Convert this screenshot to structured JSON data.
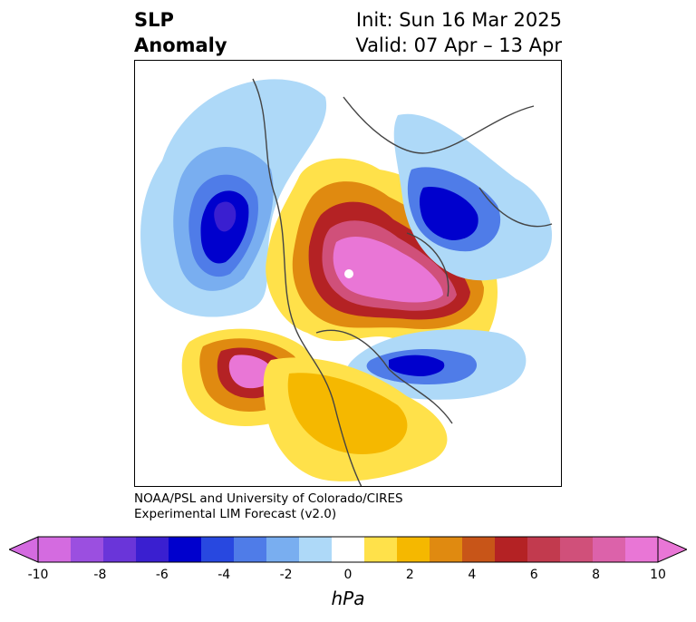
{
  "header": {
    "title_line1": "SLP",
    "title_line2": "Anomaly",
    "init": "Init: Sun 16 Mar 2025",
    "valid": "Valid: 07 Apr – 13 Apr"
  },
  "credit": {
    "line1": "NOAA/PSL and University of Colorado/CIRES",
    "line2": "Experimental LIM Forecast (v2.0)"
  },
  "colorbar": {
    "unit": "hPa",
    "ticks": [
      "-10",
      "-8",
      "-6",
      "-4",
      "-2",
      "0",
      "2",
      "4",
      "6",
      "8",
      "10"
    ],
    "colors": [
      "#d46be0",
      "#9b4fe0",
      "#6a35d9",
      "#3a1fd0",
      "#0000cd",
      "#2848e0",
      "#4f7ce8",
      "#79aef0",
      "#aed9f8",
      "#ffffff",
      "#ffe14a",
      "#f5b800",
      "#e08a10",
      "#c85518",
      "#b42224",
      "#c23a4e",
      "#d0507a",
      "#dc62aa",
      "#e976d6"
    ],
    "min_extend_color": "#d46be0",
    "max_extend_color": "#e976d6"
  },
  "map": {
    "projection": "north-polar-stereographic",
    "field": "sea level pressure anomaly"
  }
}
